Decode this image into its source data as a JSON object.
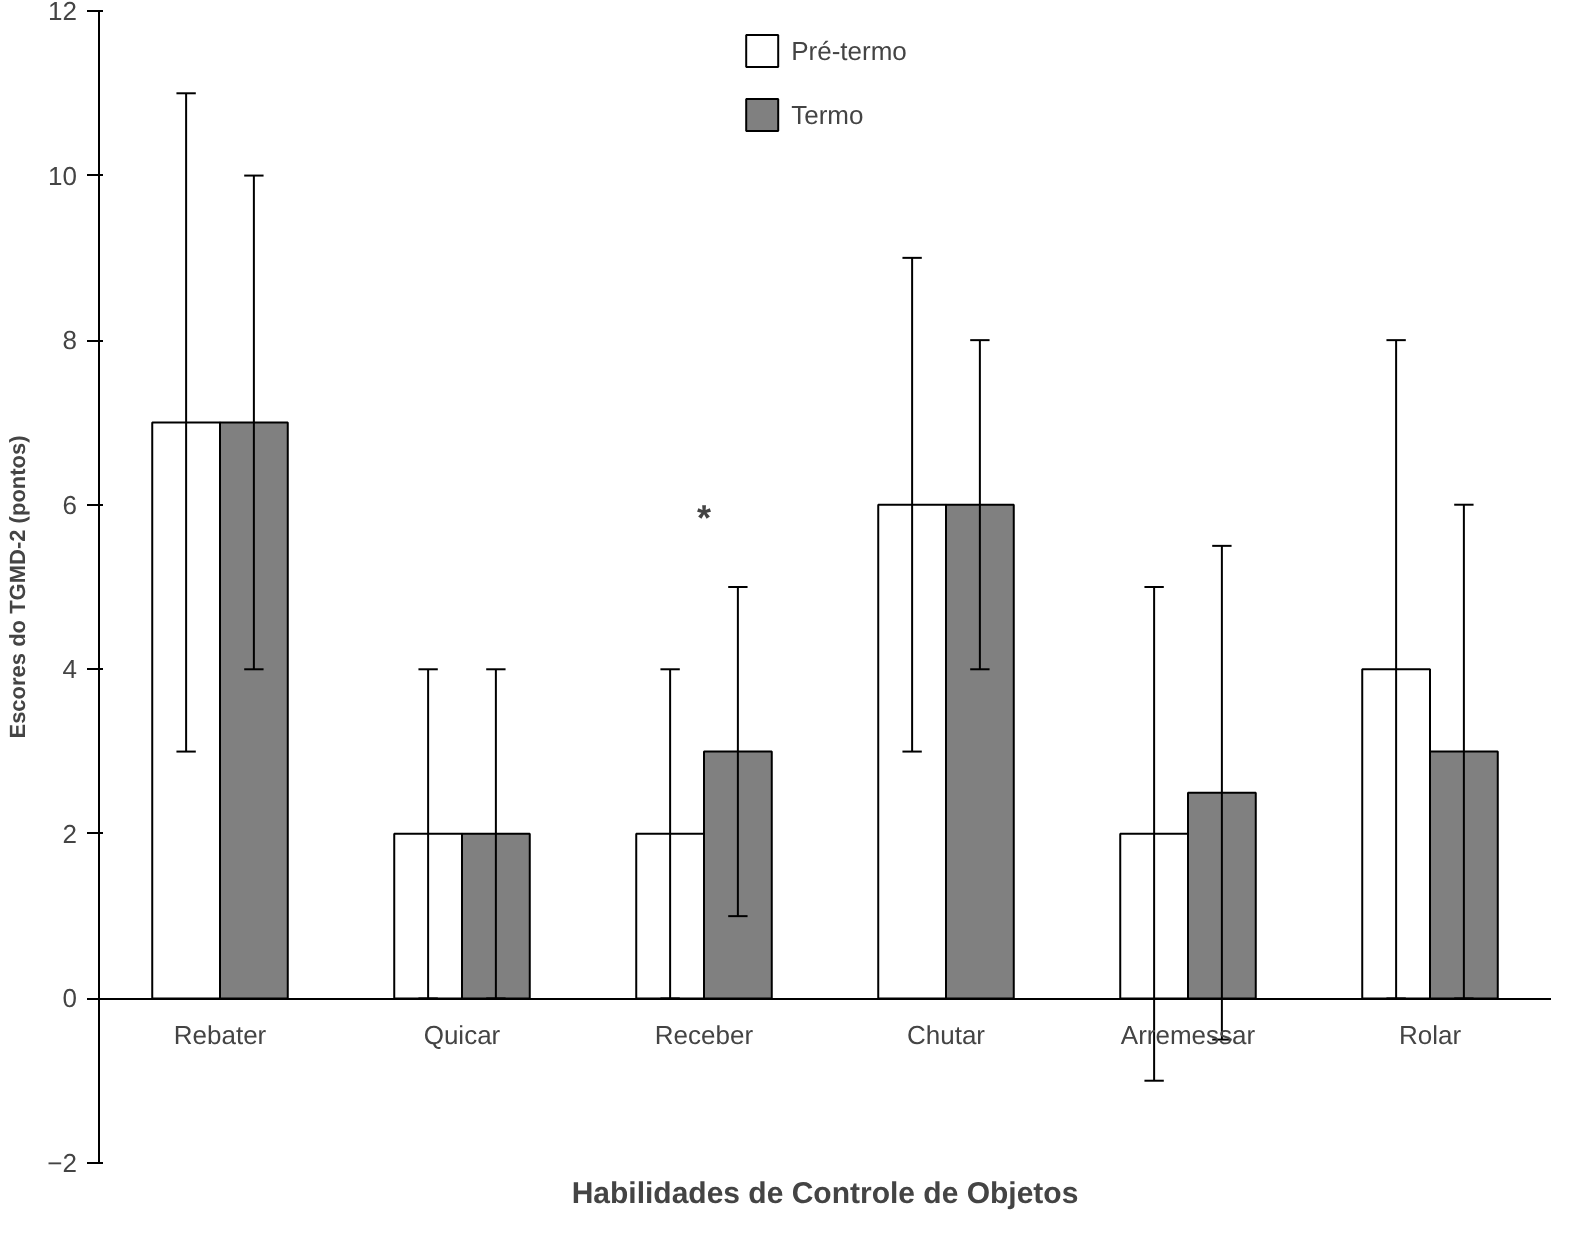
{
  "chart_data": {
    "type": "bar",
    "xlabel": "Habilidades de Controle de Objetos",
    "ylabel": "Escores do TGMD-2 (pontos)",
    "categories": [
      "Rebater",
      "Quicar",
      "Receber",
      "Chutar",
      "Arremessar",
      "Rolar"
    ],
    "series": [
      {
        "name": "Pré-termo",
        "color": "#ffffff",
        "values": [
          7,
          2,
          2,
          6,
          2,
          4
        ],
        "errors": [
          [
            3,
            11
          ],
          [
            0,
            4
          ],
          [
            0,
            4
          ],
          [
            3,
            9
          ],
          [
            -1,
            5
          ],
          [
            0,
            8
          ]
        ]
      },
      {
        "name": "Termo",
        "color": "#808080",
        "values": [
          7,
          2,
          3,
          6,
          2.5,
          3
        ],
        "errors": [
          [
            4,
            10
          ],
          [
            0,
            4
          ],
          [
            1,
            5
          ],
          [
            4,
            8
          ],
          [
            -0.5,
            5.5
          ],
          [
            0,
            6
          ]
        ]
      }
    ],
    "ylim": [
      -2,
      12
    ],
    "yticks": [
      -2,
      0,
      2,
      4,
      6,
      8,
      10,
      12
    ],
    "grid": false,
    "legend": "top",
    "annotations": [
      "*"
    ]
  }
}
